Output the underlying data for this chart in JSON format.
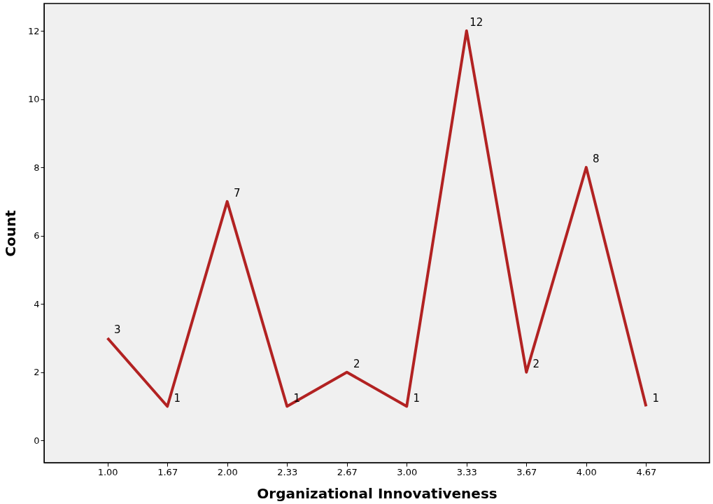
{
  "chart_data": {
    "type": "line",
    "xlabel": "Organizational Innovativeness",
    "ylabel": "Count",
    "categories": [
      "1.00",
      "1.67",
      "2.00",
      "2.33",
      "2.67",
      "3.00",
      "3.33",
      "3.67",
      "4.00",
      "4.67"
    ],
    "series": [
      {
        "color": "#b22222",
        "values": [
          3,
          1,
          7,
          1,
          2,
          1,
          12,
          2,
          8,
          1
        ]
      }
    ],
    "ylim": [
      -0.65,
      12.8
    ],
    "yticks": [
      0,
      2,
      4,
      6,
      8,
      10,
      12
    ],
    "grid": false,
    "legend": false,
    "marker": "none",
    "line_style": "solid",
    "data_labels": true
  }
}
